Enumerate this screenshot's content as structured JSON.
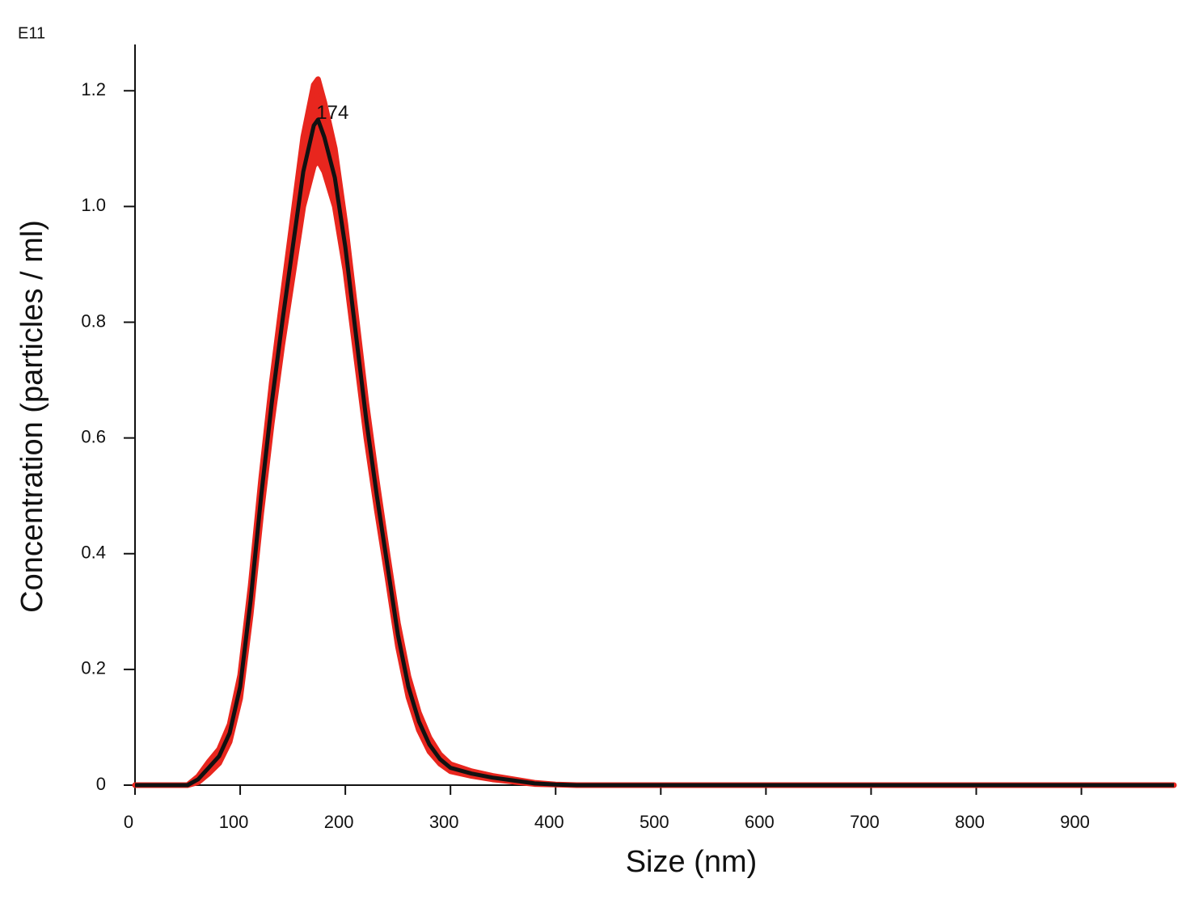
{
  "chart_data": {
    "type": "line",
    "y_multiplier_label": "E11",
    "xlabel": "Size (nm)",
    "ylabel": "Concentration (particles / ml)",
    "x": [
      0,
      40,
      50,
      60,
      70,
      80,
      90,
      100,
      110,
      120,
      130,
      140,
      150,
      160,
      170,
      174,
      180,
      190,
      200,
      210,
      220,
      230,
      240,
      250,
      260,
      270,
      280,
      290,
      300,
      320,
      340,
      360,
      380,
      400,
      420,
      460,
      988
    ],
    "series": [
      {
        "color": "#111111",
        "error_color": "#e8261e",
        "values": [
          0,
          0,
          0,
          0.01,
          0.03,
          0.05,
          0.09,
          0.17,
          0.32,
          0.5,
          0.66,
          0.8,
          0.93,
          1.06,
          1.14,
          1.15,
          1.12,
          1.05,
          0.93,
          0.78,
          0.63,
          0.5,
          0.38,
          0.26,
          0.17,
          0.11,
          0.07,
          0.045,
          0.03,
          0.02,
          0.013,
          0.008,
          0.003,
          0.001,
          0,
          0,
          0
        ],
        "error": [
          0,
          0,
          0,
          0.005,
          0.01,
          0.012,
          0.015,
          0.02,
          0.025,
          0.03,
          0.035,
          0.04,
          0.05,
          0.06,
          0.07,
          0.07,
          0.06,
          0.05,
          0.04,
          0.035,
          0.03,
          0.025,
          0.02,
          0.02,
          0.018,
          0.015,
          0.012,
          0.008,
          0.006,
          0.004,
          0.003,
          0.002,
          0.001,
          0,
          0,
          0,
          0
        ]
      }
    ],
    "annotations": [
      {
        "text": "174",
        "x": 174,
        "y": 1.16,
        "color": "#3a5fb0"
      }
    ],
    "xlim": [
      0,
      988
    ],
    "ylim": [
      0,
      1.28
    ],
    "xticks": [
      0,
      100,
      200,
      300,
      400,
      500,
      600,
      700,
      800,
      900
    ],
    "yticks": [
      0,
      0.2,
      0.4,
      0.6,
      0.8,
      {
        "value": 1,
        "label": "1.0"
      },
      1.2
    ]
  }
}
